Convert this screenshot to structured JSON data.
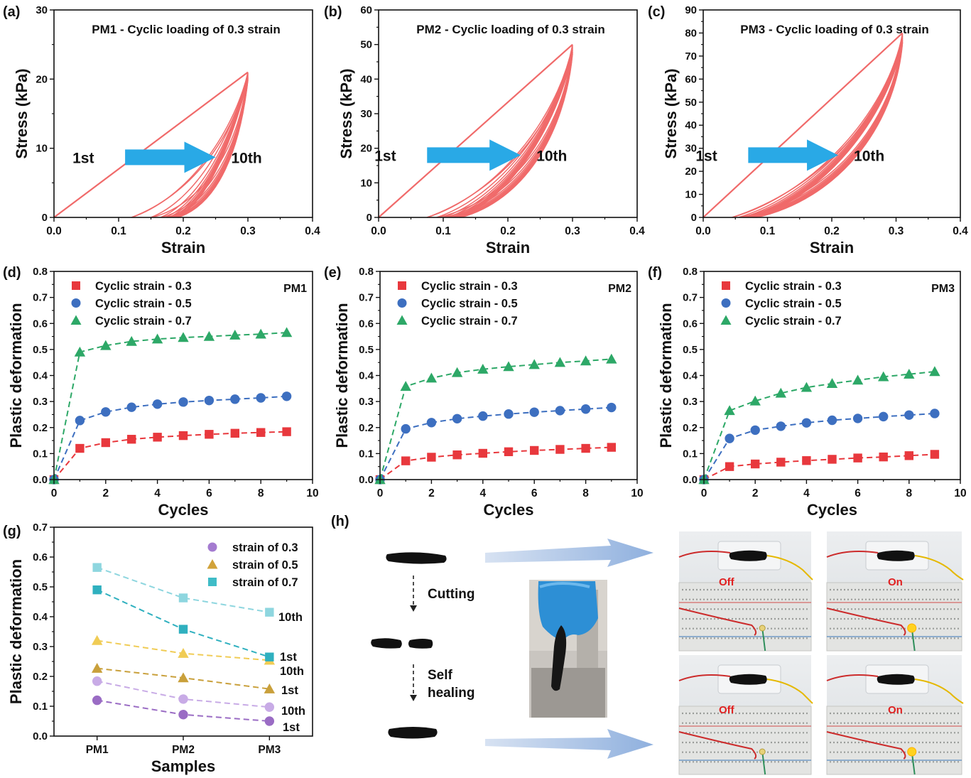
{
  "chart_data": [
    {
      "id": "a",
      "panel_label": "(a)",
      "type": "line",
      "title": "PM1 - Cyclic loading of 0.3 strain",
      "xlabel": "Strain",
      "ylabel": "Stress (kPa)",
      "xlim": [
        0,
        0.4
      ],
      "ylim": [
        0,
        30
      ],
      "xticks": [
        0.0,
        0.1,
        0.2,
        0.3,
        0.4
      ],
      "xtick_labels": [
        "0.0",
        "0.1",
        "0.2",
        "0.3",
        "0.4"
      ],
      "yticks": [
        0,
        10,
        20,
        30
      ],
      "ytick_labels": [
        "0",
        "10",
        "20",
        "30"
      ],
      "color": "#f06a6a",
      "first_loading": {
        "x": [
          0,
          0.3
        ],
        "y": [
          0,
          21
        ]
      },
      "cycle_start_strains": [
        0,
        0.12,
        0.15,
        0.165,
        0.173,
        0.178,
        0.182,
        0.185,
        0.188,
        0.19
      ],
      "peak": {
        "x": 0.3,
        "y": 21
      },
      "annotations": {
        "start": "1st",
        "end": "10th"
      },
      "arrow": {
        "from": [
          0.11,
          8.7
        ],
        "to": [
          0.25,
          8.7
        ]
      }
    },
    {
      "id": "b",
      "panel_label": "(b)",
      "type": "line",
      "title": "PM2 - Cyclic loading of 0.3 strain",
      "xlabel": "Strain",
      "ylabel": "Stress (kPa)",
      "xlim": [
        0,
        0.4
      ],
      "ylim": [
        0,
        60
      ],
      "xticks": [
        0.0,
        0.1,
        0.2,
        0.3,
        0.4
      ],
      "xtick_labels": [
        "0.0",
        "0.1",
        "0.2",
        "0.3",
        "0.4"
      ],
      "yticks": [
        0,
        10,
        20,
        30,
        40,
        50,
        60
      ],
      "ytick_labels": [
        "0",
        "10",
        "20",
        "30",
        "40",
        "50",
        "60"
      ],
      "color": "#f06a6a",
      "first_loading": {
        "x": [
          0,
          0.3
        ],
        "y": [
          0,
          50
        ]
      },
      "cycle_start_strains": [
        0,
        0.075,
        0.09,
        0.1,
        0.107,
        0.112,
        0.116,
        0.119,
        0.122,
        0.125
      ],
      "peak": {
        "x": 0.3,
        "y": 50
      },
      "annotations": {
        "start": "1st",
        "end": "10th"
      },
      "arrow": {
        "from": [
          0.075,
          18
        ],
        "to": [
          0.22,
          18
        ]
      }
    },
    {
      "id": "c",
      "panel_label": "(c)",
      "type": "line",
      "title": "PM3 - Cyclic loading of 0.3 strain",
      "xlabel": "Strain",
      "ylabel": "Stress (kPa)",
      "xlim": [
        0,
        0.4
      ],
      "ylim": [
        0,
        90
      ],
      "xticks": [
        0.0,
        0.1,
        0.2,
        0.3,
        0.4
      ],
      "xtick_labels": [
        "0.0",
        "0.1",
        "0.2",
        "0.3",
        "0.4"
      ],
      "yticks": [
        0,
        10,
        20,
        30,
        40,
        50,
        60,
        70,
        80,
        90
      ],
      "ytick_labels": [
        "0",
        "10",
        "20",
        "30",
        "40",
        "50",
        "60",
        "70",
        "80",
        "90"
      ],
      "color": "#f06a6a",
      "first_loading": {
        "x": [
          0,
          0.31
        ],
        "y": [
          0,
          80
        ]
      },
      "cycle_start_strains": [
        0,
        0.045,
        0.055,
        0.062,
        0.067,
        0.071,
        0.074,
        0.077,
        0.079,
        0.081
      ],
      "peak": {
        "x": 0.31,
        "y": 80
      },
      "annotations": {
        "start": "1st",
        "end": "10th"
      },
      "arrow": {
        "from": [
          0.07,
          27
        ],
        "to": [
          0.21,
          27
        ]
      }
    },
    {
      "id": "d",
      "panel_label": "(d)",
      "type": "scatter",
      "title": "PM1",
      "xlabel": "Cycles",
      "ylabel": "Plastic deformation",
      "xlim": [
        0,
        10
      ],
      "ylim": [
        0,
        0.8
      ],
      "xticks": [
        0,
        2,
        4,
        6,
        8,
        10
      ],
      "xtick_labels": [
        "0",
        "2",
        "4",
        "6",
        "8",
        "10"
      ],
      "yticks": [
        0.0,
        0.1,
        0.2,
        0.3,
        0.4,
        0.5,
        0.6,
        0.7,
        0.8
      ],
      "ytick_labels": [
        "0.0",
        "0.1",
        "0.2",
        "0.3",
        "0.4",
        "0.5",
        "0.6",
        "0.7",
        "0.8"
      ],
      "x": [
        0,
        1,
        2,
        3,
        4,
        5,
        6,
        7,
        8,
        9
      ],
      "legend_position": "top-left",
      "series": [
        {
          "name": "Cyclic strain - 0.3",
          "marker": "square",
          "color": "#e8383d",
          "values": [
            0,
            0.12,
            0.142,
            0.155,
            0.163,
            0.169,
            0.174,
            0.178,
            0.181,
            0.184
          ]
        },
        {
          "name": "Cyclic strain - 0.5",
          "marker": "circle",
          "color": "#3d6fc0",
          "values": [
            0,
            0.227,
            0.26,
            0.278,
            0.29,
            0.298,
            0.304,
            0.309,
            0.314,
            0.32
          ]
        },
        {
          "name": "Cyclic strain - 0.7",
          "marker": "triangle",
          "color": "#2da867",
          "values": [
            0,
            0.49,
            0.515,
            0.531,
            0.54,
            0.546,
            0.55,
            0.555,
            0.559,
            0.565
          ]
        }
      ]
    },
    {
      "id": "e",
      "panel_label": "(e)",
      "type": "scatter",
      "title": "PM2",
      "xlabel": "Cycles",
      "ylabel": "Plastic deformation",
      "xlim": [
        0,
        10
      ],
      "ylim": [
        0,
        0.8
      ],
      "xticks": [
        0,
        2,
        4,
        6,
        8,
        10
      ],
      "xtick_labels": [
        "0",
        "2",
        "4",
        "6",
        "8",
        "10"
      ],
      "yticks": [
        0.0,
        0.1,
        0.2,
        0.3,
        0.4,
        0.5,
        0.6,
        0.7,
        0.8
      ],
      "ytick_labels": [
        "0.0",
        "0.1",
        "0.2",
        "0.3",
        "0.4",
        "0.5",
        "0.6",
        "0.7",
        "0.8"
      ],
      "x": [
        0,
        1,
        2,
        3,
        4,
        5,
        6,
        7,
        8,
        9
      ],
      "legend_position": "top-left",
      "series": [
        {
          "name": "Cyclic strain - 0.3",
          "marker": "square",
          "color": "#e8383d",
          "values": [
            0,
            0.072,
            0.086,
            0.095,
            0.101,
            0.107,
            0.112,
            0.116,
            0.12,
            0.124
          ]
        },
        {
          "name": "Cyclic strain - 0.5",
          "marker": "circle",
          "color": "#3d6fc0",
          "values": [
            0,
            0.195,
            0.219,
            0.234,
            0.244,
            0.252,
            0.259,
            0.265,
            0.271,
            0.277
          ]
        },
        {
          "name": "Cyclic strain - 0.7",
          "marker": "triangle",
          "color": "#2da867",
          "values": [
            0,
            0.358,
            0.39,
            0.411,
            0.424,
            0.434,
            0.442,
            0.45,
            0.456,
            0.463
          ]
        }
      ]
    },
    {
      "id": "f",
      "panel_label": "(f)",
      "type": "scatter",
      "title": "PM3",
      "xlabel": "Cycles",
      "ylabel": "Plastic deformation",
      "xlim": [
        0,
        10
      ],
      "ylim": [
        0,
        0.8
      ],
      "xticks": [
        0,
        2,
        4,
        6,
        8,
        10
      ],
      "xtick_labels": [
        "0",
        "2",
        "4",
        "6",
        "8",
        "10"
      ],
      "yticks": [
        0.0,
        0.1,
        0.2,
        0.3,
        0.4,
        0.5,
        0.6,
        0.7,
        0.8
      ],
      "ytick_labels": [
        "0.0",
        "0.1",
        "0.2",
        "0.3",
        "0.4",
        "0.5",
        "0.6",
        "0.7",
        "0.8"
      ],
      "x": [
        0,
        1,
        2,
        3,
        4,
        5,
        6,
        7,
        8,
        9
      ],
      "legend_position": "top-left",
      "series": [
        {
          "name": "Cyclic strain - 0.3",
          "marker": "square",
          "color": "#e8383d",
          "values": [
            0,
            0.05,
            0.06,
            0.067,
            0.073,
            0.078,
            0.083,
            0.087,
            0.092,
            0.097
          ]
        },
        {
          "name": "Cyclic strain - 0.5",
          "marker": "circle",
          "color": "#3d6fc0",
          "values": [
            0,
            0.158,
            0.19,
            0.205,
            0.218,
            0.228,
            0.235,
            0.242,
            0.248,
            0.254
          ]
        },
        {
          "name": "Cyclic strain - 0.7",
          "marker": "triangle",
          "color": "#2da867",
          "values": [
            0,
            0.265,
            0.302,
            0.332,
            0.354,
            0.369,
            0.382,
            0.395,
            0.405,
            0.415
          ]
        }
      ]
    },
    {
      "id": "g",
      "panel_label": "(g)",
      "type": "scatter",
      "xlabel": "Samples",
      "ylabel": "Plastic deformation",
      "ylim": [
        0,
        0.7
      ],
      "categories": [
        "PM1",
        "PM2",
        "PM3"
      ],
      "yticks": [
        0.0,
        0.1,
        0.2,
        0.3,
        0.4,
        0.5,
        0.6,
        0.7
      ],
      "ytick_labels": [
        "0.0",
        "0.1",
        "0.2",
        "0.3",
        "0.4",
        "0.5",
        "0.6",
        "0.7"
      ],
      "legend_position": "top-right",
      "legend": [
        {
          "name": "strain of 0.3",
          "marker": "circle",
          "color": "#a47bd0"
        },
        {
          "name": "strain of 0.5",
          "marker": "triangle",
          "color": "#d1a23a"
        },
        {
          "name": "strain of 0.7",
          "marker": "square",
          "color": "#3fbcc7"
        }
      ],
      "series": [
        {
          "strain": 0.3,
          "cycle": "1st",
          "marker": "circle",
          "color": "#9a6cc4",
          "values": [
            0.12,
            0.072,
            0.05
          ]
        },
        {
          "strain": 0.3,
          "cycle": "10th",
          "marker": "circle",
          "color": "#c8abe6",
          "values": [
            0.184,
            0.124,
            0.097
          ]
        },
        {
          "strain": 0.5,
          "cycle": "1st",
          "marker": "triangle",
          "color": "#c9a03b",
          "values": [
            0.227,
            0.195,
            0.158
          ]
        },
        {
          "strain": 0.5,
          "cycle": "10th",
          "marker": "triangle",
          "color": "#f0cc55",
          "values": [
            0.32,
            0.277,
            0.254
          ]
        },
        {
          "strain": 0.7,
          "cycle": "1st",
          "marker": "square",
          "color": "#2fb0bf",
          "values": [
            0.49,
            0.358,
            0.265
          ]
        },
        {
          "strain": 0.7,
          "cycle": "10th",
          "marker": "square",
          "color": "#8ed6df",
          "values": [
            0.565,
            0.463,
            0.415
          ]
        }
      ],
      "annotations": [
        {
          "text": "10th",
          "near": "0.7 strain, PM3"
        },
        {
          "text": "1st",
          "near": "0.7 strain, PM3"
        },
        {
          "text": "10th",
          "near": "0.5 strain, PM3"
        },
        {
          "text": "1st",
          "near": "0.5 strain, PM3"
        },
        {
          "text": "10th",
          "near": "0.3 strain, PM3"
        },
        {
          "text": "1st",
          "near": "0.3 strain, PM3"
        }
      ]
    }
  ],
  "panel_h": {
    "label": "(h)",
    "cutting": "Cutting",
    "self": "Self",
    "healing": "healing",
    "photo_labels": [
      "Off",
      "On",
      "Off",
      "On"
    ]
  }
}
